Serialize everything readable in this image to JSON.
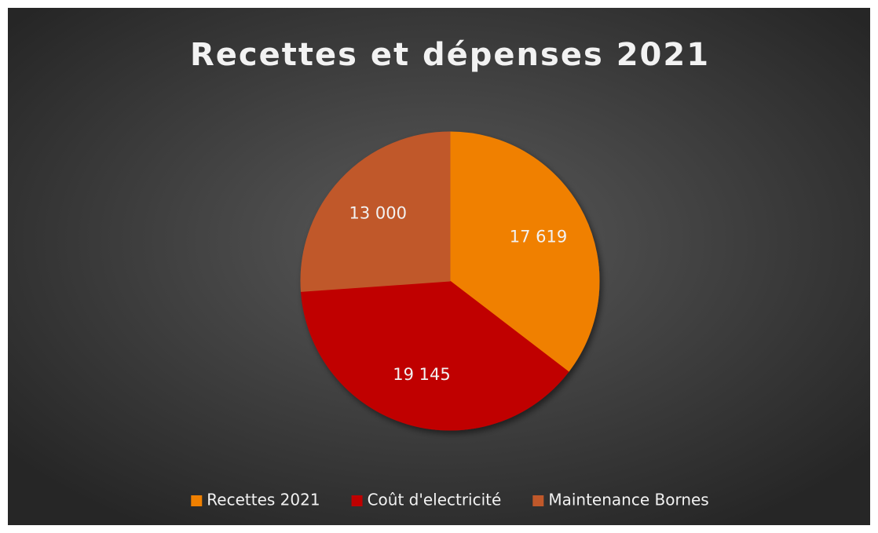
{
  "chart_data": {
    "type": "pie",
    "title": "Recettes et dépenses 2021",
    "categories": [
      "Recettes 2021",
      "Coût d'electricité",
      "Maintenance Bornes"
    ],
    "values": [
      17619,
      19145,
      13000
    ],
    "value_labels": [
      "17 619",
      "19 145",
      "13 000"
    ],
    "colors": [
      "#f08000",
      "#c00000",
      "#c0582a"
    ],
    "legend": "bottom"
  }
}
